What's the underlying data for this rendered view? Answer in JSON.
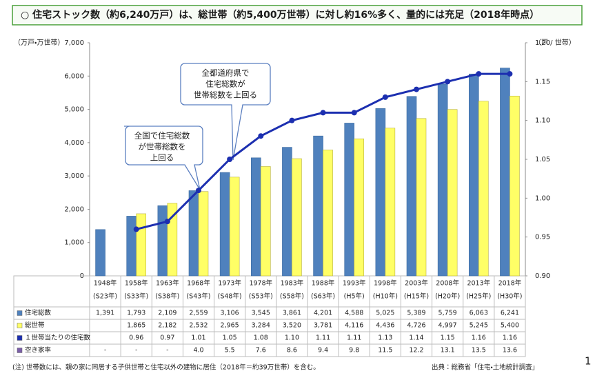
{
  "chart_data": {
    "type": "bar_line_table",
    "title": "○ 住宅ストック数（約6,240万戸）は、総世帯（約5,400万世帯）に対し約16%多く、量的には充足（2018年時点）",
    "y_label": "（万戸・万世帯）",
    "y2_label": "（戸 / 世帯）",
    "categories": [
      [
        "1948年",
        "(S23年)"
      ],
      [
        "1958年",
        "(S33年)"
      ],
      [
        "1963年",
        "(S38年)"
      ],
      [
        "1968年",
        "(S43年)"
      ],
      [
        "1973年",
        "(S48年)"
      ],
      [
        "1978年",
        "(S53年)"
      ],
      [
        "1983年",
        "(S58年)"
      ],
      [
        "1988年",
        "(S63年)"
      ],
      [
        "1993年",
        "(H5年)"
      ],
      [
        "1998年",
        "(H10年)"
      ],
      [
        "2003年",
        "(H15年)"
      ],
      [
        "2008年",
        "(H20年)"
      ],
      [
        "2013年",
        "(H25年)"
      ],
      [
        "2018年",
        "(H30年)"
      ]
    ],
    "ylim": [
      0,
      7000
    ],
    "yticks": [
      0,
      {
        "value": 1000,
        "label": "1,000"
      },
      {
        "value": 2000,
        "label": "2,000"
      },
      {
        "value": 3000,
        "label": "3,000"
      },
      {
        "value": 4000,
        "label": "4,000"
      },
      {
        "value": 5000,
        "label": "5,000"
      },
      {
        "value": 6000,
        "label": "6,000"
      },
      {
        "value": 7000,
        "label": "7,000"
      }
    ],
    "y2lim": [
      0.9,
      1.2
    ],
    "y2ticks": [
      {
        "value": 0.9,
        "label": "0.90"
      },
      0.95,
      {
        "value": 1.0,
        "label": "1.00"
      },
      1.05,
      {
        "value": 1.1,
        "label": "1.10"
      },
      1.15,
      {
        "value": 1.2,
        "label": "1.20"
      }
    ],
    "series": [
      {
        "name": "住宅総数",
        "kind": "bar",
        "color": "#4f81bd",
        "values": [
          1391,
          1793,
          2109,
          2559,
          3106,
          3545,
          3861,
          4201,
          4588,
          5025,
          5389,
          5759,
          6063,
          6241
        ],
        "value_labels": [
          "1,391",
          "1,793",
          "2,109",
          "2,559",
          "3,106",
          "3,545",
          "3,861",
          "4,201",
          "4,588",
          "5,025",
          "5,389",
          "5,759",
          "6,063",
          "6,241"
        ]
      },
      {
        "name": "総世帯",
        "kind": "bar",
        "color": "#ffff66",
        "values": [
          null,
          1865,
          2182,
          2532,
          2965,
          3284,
          3520,
          3781,
          4116,
          4436,
          4726,
          4997,
          5245,
          5400
        ],
        "value_labels": [
          null,
          "1,865",
          "2,182",
          "2,532",
          "2,965",
          "3,284",
          "3,520",
          "3,781",
          "4,116",
          "4,436",
          "4,726",
          "4,997",
          "5,245",
          "5,400"
        ]
      },
      {
        "name": "１世帯当たりの住宅数",
        "kind": "line",
        "axis": "y2",
        "color": "#1c2fb0",
        "values": [
          null,
          0.96,
          0.97,
          1.01,
          1.05,
          1.08,
          1.1,
          1.11,
          1.11,
          1.13,
          1.14,
          1.15,
          1.16,
          1.16
        ],
        "value_labels": [
          null,
          "0.96",
          "0.97",
          "1.01",
          "1.05",
          "1.08",
          "1.10",
          "1.11",
          "1.11",
          "1.13",
          "1.14",
          "1.15",
          "1.16",
          "1.16"
        ]
      },
      {
        "name": "空き家率",
        "kind": "table",
        "color": "#7b5fa8",
        "values": [
          null,
          null,
          null,
          4.0,
          5.5,
          7.6,
          8.6,
          9.4,
          9.8,
          11.5,
          12.2,
          13.1,
          13.5,
          13.6
        ],
        "value_labels": [
          "-",
          "-",
          "-",
          "4.0",
          "5.5",
          "7.6",
          "8.6",
          "9.4",
          "9.8",
          "11.5",
          "12.2",
          "13.1",
          "13.5",
          "13.6"
        ]
      }
    ],
    "annotations": [
      [
        "全国で住宅総数",
        "が世帯総数を",
        "上回る"
      ],
      [
        "全都道府県で",
        "住宅総数が",
        "世帯総数を上回る"
      ]
    ],
    "footnote": "(注) 世帯数には、親の家に同居する子供世帯と住宅以外の建物に居住（2018年＝約39万世帯）を含む。",
    "source": "出典：総務省「住宅・土地統計調査」",
    "page_number": "1"
  }
}
